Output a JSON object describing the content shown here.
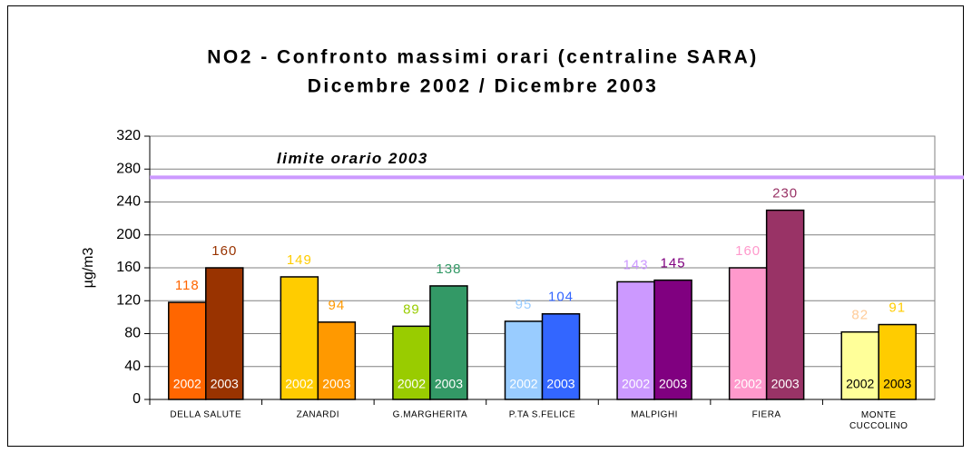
{
  "chart_data": {
    "type": "bar",
    "title": "NO2 - Confronto massimi orari (centraline SARA)",
    "subtitle": "Dicembre 2002 / Dicembre 2003",
    "y_label": "µg/m3",
    "categories": [
      "DELLA SALUTE",
      "ZANARDI",
      "G.MARGHERITA",
      "P.TA S.FELICE",
      "MALPIGHI",
      "FIERA",
      "MONTE CUCCOLINO"
    ],
    "series": [
      {
        "name": "2002",
        "values": [
          118,
          149,
          89,
          95,
          143,
          160,
          82
        ],
        "colors": [
          "#ff6600",
          "#ffcc00",
          "#99cc00",
          "#99ccff",
          "#cc99ff",
          "#ff99cc",
          "#ffff99"
        ],
        "value_label_colors": [
          "#ff6600",
          "#ffcc00",
          "#99cc00",
          "#99ccff",
          "#cc99ff",
          "#ff99cc",
          "#ffcc99"
        ],
        "name_colors": [
          "#ffffff",
          "#ffffff",
          "#ffffff",
          "#ffffff",
          "#ffffff",
          "#ffffff",
          "#000000"
        ]
      },
      {
        "name": "2003",
        "values": [
          160,
          94,
          138,
          104,
          145,
          230,
          91
        ],
        "colors": [
          "#993300",
          "#ff9900",
          "#339966",
          "#3366ff",
          "#800080",
          "#993366",
          "#ffcc00"
        ],
        "value_label_colors": [
          "#993300",
          "#ff9900",
          "#339966",
          "#3366ff",
          "#800080",
          "#993366",
          "#ffcc00"
        ],
        "name_colors": [
          "#ffffff",
          "#ffffff",
          "#ffffff",
          "#ffffff",
          "#ffffff",
          "#ffffff",
          "#000000"
        ]
      }
    ],
    "limit": {
      "label": "limite orario 2003",
      "value": 270,
      "color": "#cc99ff"
    },
    "ylim": [
      0,
      320
    ],
    "yticks": [
      0,
      40,
      80,
      120,
      160,
      200,
      240,
      280,
      320
    ],
    "grid": true
  }
}
